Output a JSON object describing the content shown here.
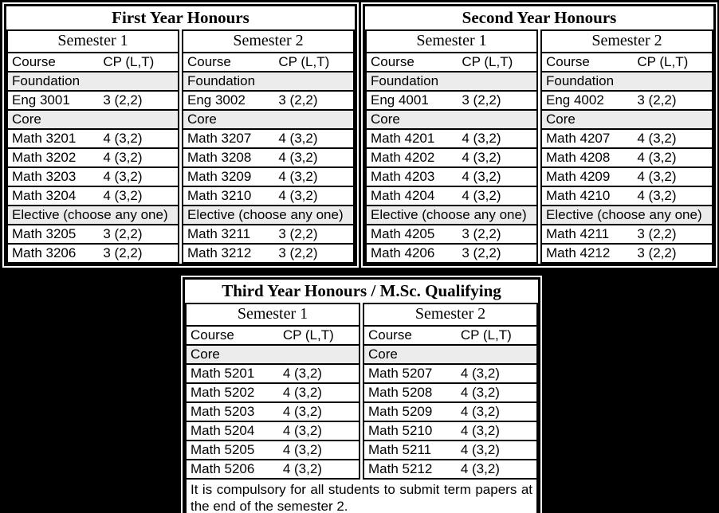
{
  "colors": {
    "canvas_bg": "#000000",
    "table_bg": "#ffffff",
    "border": "#000000",
    "section_band_bg": "#ececec",
    "text": "#000000"
  },
  "tables": [
    {
      "title": "First Year Honours",
      "semesters": [
        {
          "title": "Semester 1",
          "col_headers": [
            "Course",
            "CP (L,T)"
          ],
          "rows": [
            {
              "type": "band",
              "label": "Foundation"
            },
            {
              "type": "course",
              "course": "Eng 3001",
              "cp": "3 (2,2)"
            },
            {
              "type": "band",
              "label": "Core"
            },
            {
              "type": "course",
              "course": "Math 3201",
              "cp": "4 (3,2)"
            },
            {
              "type": "course",
              "course": "Math 3202",
              "cp": "4 (3,2)"
            },
            {
              "type": "course",
              "course": "Math 3203",
              "cp": "4 (3,2)"
            },
            {
              "type": "course",
              "course": "Math 3204",
              "cp": "4 (3,2)"
            },
            {
              "type": "band",
              "label": "Elective (choose any one)"
            },
            {
              "type": "course",
              "course": "Math 3205",
              "cp": "3 (2,2)"
            },
            {
              "type": "course",
              "course": "Math 3206",
              "cp": "3 (2,2)"
            }
          ]
        },
        {
          "title": "Semester 2",
          "col_headers": [
            "Course",
            "CP (L,T)"
          ],
          "rows": [
            {
              "type": "band",
              "label": "Foundation"
            },
            {
              "type": "course",
              "course": "Eng 3002",
              "cp": "3 (2,2)"
            },
            {
              "type": "band",
              "label": "Core"
            },
            {
              "type": "course",
              "course": "Math 3207",
              "cp": "4 (3,2)"
            },
            {
              "type": "course",
              "course": "Math 3208",
              "cp": "4 (3,2)"
            },
            {
              "type": "course",
              "course": "Math 3209",
              "cp": "4 (3,2)"
            },
            {
              "type": "course",
              "course": "Math 3210",
              "cp": "4 (3,2)"
            },
            {
              "type": "band",
              "label": "Elective (choose any one)"
            },
            {
              "type": "course",
              "course": "Math 3211",
              "cp": "3 (2,2)"
            },
            {
              "type": "course",
              "course": "Math 3212",
              "cp": "3 (2,2)"
            }
          ]
        }
      ]
    },
    {
      "title": "Second Year Honours",
      "semesters": [
        {
          "title": "Semester 1",
          "col_headers": [
            "Course",
            "CP (L,T)"
          ],
          "rows": [
            {
              "type": "band",
              "label": "Foundation"
            },
            {
              "type": "course",
              "course": "Eng 4001",
              "cp": "3 (2,2)"
            },
            {
              "type": "band",
              "label": "Core"
            },
            {
              "type": "course",
              "course": "Math 4201",
              "cp": "4 (3,2)"
            },
            {
              "type": "course",
              "course": "Math 4202",
              "cp": "4 (3,2)"
            },
            {
              "type": "course",
              "course": "Math 4203",
              "cp": "4 (3,2)"
            },
            {
              "type": "course",
              "course": "Math 4204",
              "cp": "4 (3,2)"
            },
            {
              "type": "band",
              "label": "Elective (choose any one)"
            },
            {
              "type": "course",
              "course": "Math 4205",
              "cp": "3 (2,2)"
            },
            {
              "type": "course",
              "course": "Math 4206",
              "cp": "3 (2,2)"
            }
          ]
        },
        {
          "title": "Semester 2",
          "col_headers": [
            "Course",
            "CP (L,T)"
          ],
          "rows": [
            {
              "type": "band",
              "label": "Foundation"
            },
            {
              "type": "course",
              "course": "Eng 4002",
              "cp": "3 (2,2)"
            },
            {
              "type": "band",
              "label": "Core"
            },
            {
              "type": "course",
              "course": "Math 4207",
              "cp": "4 (3,2)"
            },
            {
              "type": "course",
              "course": "Math 4208",
              "cp": "4 (3,2)"
            },
            {
              "type": "course",
              "course": "Math 4209",
              "cp": "4 (3,2)"
            },
            {
              "type": "course",
              "course": "Math 4210",
              "cp": "4 (3,2)"
            },
            {
              "type": "band",
              "label": "Elective (choose any one)"
            },
            {
              "type": "course",
              "course": "Math 4211",
              "cp": "3 (2,2)"
            },
            {
              "type": "course",
              "course": "Math 4212",
              "cp": "3 (2,2)"
            }
          ]
        }
      ]
    },
    {
      "title": "Third Year Honours / M.Sc. Qualifying",
      "semesters": [
        {
          "title": "Semester 1",
          "col_headers": [
            "Course",
            "CP (L,T)"
          ],
          "rows": [
            {
              "type": "band",
              "label": "Core"
            },
            {
              "type": "course",
              "course": "Math 5201",
              "cp": "4 (3,2)"
            },
            {
              "type": "course",
              "course": "Math 5202",
              "cp": "4 (3,2)"
            },
            {
              "type": "course",
              "course": "Math 5203",
              "cp": "4 (3,2)"
            },
            {
              "type": "course",
              "course": "Math 5204",
              "cp": "4 (3,2)"
            },
            {
              "type": "course",
              "course": "Math 5205",
              "cp": "4 (3,2)"
            },
            {
              "type": "course",
              "course": "Math 5206",
              "cp": "4 (3,2)"
            }
          ]
        },
        {
          "title": "Semester 2",
          "col_headers": [
            "Course",
            "CP (L,T)"
          ],
          "rows": [
            {
              "type": "band",
              "label": "Core"
            },
            {
              "type": "course",
              "course": "Math 5207",
              "cp": "4 (3,2)"
            },
            {
              "type": "course",
              "course": "Math 5208",
              "cp": "4 (3,2)"
            },
            {
              "type": "course",
              "course": "Math 5209",
              "cp": "4 (3,2)"
            },
            {
              "type": "course",
              "course": "Math 5210",
              "cp": "4 (3,2)"
            },
            {
              "type": "course",
              "course": "Math 5211",
              "cp": "4 (3,2)"
            },
            {
              "type": "course",
              "course": "Math 5212",
              "cp": "4 (3,2)"
            }
          ]
        }
      ],
      "footnote": "It is compulsory for all students to submit term papers at the end of the semester 2."
    }
  ]
}
